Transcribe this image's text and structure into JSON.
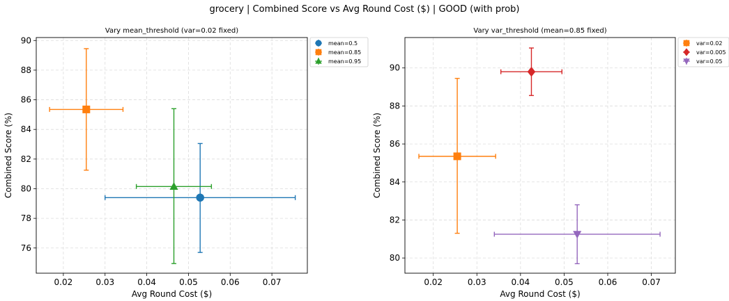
{
  "figure_title": "grocery | Combined Score vs Avg Round Cost ($) | GOOD (with prob)",
  "chart_data": [
    {
      "type": "scatter",
      "title": "Vary mean_threshold  (var=0.02 fixed)",
      "xlabel": "Avg Round Cost ($)",
      "ylabel": "Combined Score (%)",
      "xlim": [
        0.0135,
        0.0785
      ],
      "ylim": [
        74.3,
        90.2
      ],
      "xticks": [
        0.02,
        0.03,
        0.04,
        0.05,
        0.06,
        0.07
      ],
      "xtick_labels": [
        "0.02",
        "0.03",
        "0.04",
        "0.05",
        "0.06",
        "0.07"
      ],
      "yticks": [
        76,
        78,
        80,
        82,
        84,
        86,
        88,
        90
      ],
      "ytick_labels": [
        "76",
        "78",
        "80",
        "82",
        "84",
        "86",
        "88",
        "90"
      ],
      "grid": true,
      "legend_position": "outside-top-right",
      "series": [
        {
          "name": "mean=0.5",
          "color": "#1f77b4",
          "marker": "circle",
          "x": 0.0528,
          "y": 79.4,
          "xerr": 0.0228,
          "yerr_low": 3.7,
          "yerr_high": 3.65
        },
        {
          "name": "mean=0.85",
          "color": "#ff7f0e",
          "marker": "square",
          "x": 0.0255,
          "y": 85.35,
          "xerr": 0.0088,
          "yerr_low": 4.1,
          "yerr_high": 4.1
        },
        {
          "name": "mean=0.95",
          "color": "#2ca02c",
          "marker": "triangle-up",
          "x": 0.0465,
          "y": 80.15,
          "xerr": 0.009,
          "yerr_low": 5.2,
          "yerr_high": 5.25
        }
      ]
    },
    {
      "type": "scatter",
      "title": "Vary var_threshold  (mean=0.85 fixed)",
      "xlabel": "Avg Round Cost ($)",
      "ylabel": "Combined Score (%)",
      "xlim": [
        0.0135,
        0.0755
      ],
      "ylim": [
        79.2,
        91.6
      ],
      "xticks": [
        0.02,
        0.03,
        0.04,
        0.05,
        0.06,
        0.07
      ],
      "xtick_labels": [
        "0.02",
        "0.03",
        "0.04",
        "0.05",
        "0.06",
        "0.07"
      ],
      "yticks": [
        80,
        82,
        84,
        86,
        88,
        90
      ],
      "ytick_labels": [
        "80",
        "82",
        "84",
        "86",
        "88",
        "90"
      ],
      "grid": true,
      "legend_position": "outside-top-right",
      "series": [
        {
          "name": "var=0.02",
          "color": "#ff7f0e",
          "marker": "square",
          "x": 0.0255,
          "y": 85.35,
          "xerr": 0.0088,
          "yerr_low": 4.05,
          "yerr_high": 4.1
        },
        {
          "name": "var=0.005",
          "color": "#d62728",
          "marker": "diamond",
          "x": 0.0425,
          "y": 89.8,
          "xerr": 0.007,
          "yerr_low": 1.25,
          "yerr_high": 1.25
        },
        {
          "name": "var=0.05",
          "color": "#9467bd",
          "marker": "triangle-down",
          "x": 0.053,
          "y": 81.25,
          "xerr": 0.019,
          "yerr_low": 1.55,
          "yerr_high": 1.55
        }
      ]
    }
  ]
}
